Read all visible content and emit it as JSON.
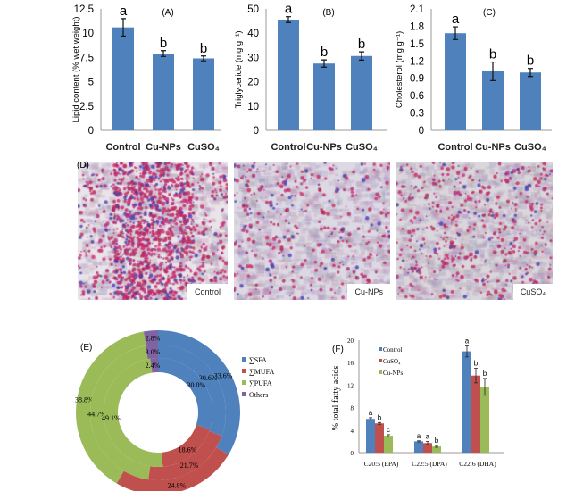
{
  "chart_data": [
    {
      "panel": "(A)",
      "type": "bar",
      "categories": [
        "Control",
        "Cu-NPs",
        "CuSO₄"
      ],
      "values": [
        10.6,
        7.9,
        7.4
      ],
      "errors": [
        0.9,
        0.3,
        0.25
      ],
      "letters": [
        "a",
        "b",
        "b"
      ],
      "ylabel": "Lipid content (% wet weight)",
      "ylim": [
        0,
        12.5
      ],
      "yticks": [
        "0",
        "2.5",
        "5",
        "7.5",
        "10",
        "12.5"
      ],
      "color": "#4f81bd"
    },
    {
      "panel": "(B)",
      "type": "bar",
      "categories": [
        "Control",
        "Cu-NPs",
        "CuSO₄"
      ],
      "values": [
        45.6,
        27.5,
        30.6
      ],
      "errors": [
        1.2,
        1.5,
        1.7
      ],
      "letters": [
        "a",
        "b",
        "b"
      ],
      "ylabel": "Triglyceride (mg g⁻¹)",
      "ylim": [
        0,
        50
      ],
      "yticks": [
        "0",
        "10",
        "20",
        "30",
        "40",
        "50"
      ],
      "color": "#4f81bd"
    },
    {
      "panel": "(C)",
      "type": "bar",
      "categories": [
        "Control",
        "Cu-NPs",
        "CuSO₄"
      ],
      "values": [
        1.68,
        1.02,
        1.0
      ],
      "errors": [
        0.11,
        0.16,
        0.07
      ],
      "letters": [
        "a",
        "b",
        "b"
      ],
      "ylabel": "Cholesterol (mg g⁻¹)",
      "ylim": [
        0,
        2.1
      ],
      "yticks": [
        "0",
        "0.3",
        "0.6",
        "0.9",
        "1.2",
        "1.5",
        "1.8",
        "2.1"
      ],
      "color": "#4f81bd"
    },
    {
      "panel": "(E)",
      "type": "pie",
      "legend": [
        "∑SFA",
        "∑MUFA",
        "∑PUFA",
        "Others"
      ],
      "colors": [
        "#4f81bd",
        "#c0504d",
        "#9bbb59",
        "#8064a2"
      ],
      "rings": [
        [
          33.6,
          24.8,
          38.8,
          2.8
        ],
        [
          30.6,
          21.7,
          44.7,
          3.0
        ],
        [
          30.0,
          18.6,
          49.1,
          2.4
        ]
      ],
      "ring_labels": [
        [
          "33.6%",
          "24.8%",
          "38.8%",
          "2.8%"
        ],
        [
          "30.6%",
          "21.7%",
          "44.7%",
          "3.0%"
        ],
        [
          "30.0%",
          "18.6%",
          "49.1%",
          "2.4%"
        ]
      ]
    },
    {
      "panel": "(F)",
      "type": "bar",
      "categories": [
        "C20:5 (EPA)",
        "C22:5 (DPA)",
        "C22:6 (DHA)"
      ],
      "ylabel": "% total fatty acids",
      "ylim": [
        0,
        20
      ],
      "yticks": [
        "0",
        "4",
        "8",
        "12",
        "16",
        "20"
      ],
      "series": [
        {
          "name": "Control",
          "color": "#4f81bd",
          "values": [
            6.0,
            2.0,
            18.0
          ],
          "errors": [
            0.2,
            0.1,
            1.0
          ],
          "letters": [
            "a",
            "a",
            "a"
          ]
        },
        {
          "name": "CuSO₄",
          "color": "#c0504d",
          "values": [
            5.2,
            1.7,
            13.7
          ],
          "errors": [
            0.15,
            0.3,
            1.3
          ],
          "letters": [
            "b",
            "a",
            "b"
          ]
        },
        {
          "name": "Cu-NPs",
          "color": "#9bbb59",
          "values": [
            3.0,
            1.1,
            11.7
          ],
          "errors": [
            0.2,
            0.15,
            1.5
          ],
          "letters": [
            "c",
            "b",
            "b"
          ]
        }
      ],
      "legend": "top-left"
    }
  ],
  "micrographs": {
    "panel": "(D)",
    "labels": [
      "Control",
      "Cu-NPs",
      "CuSO₄"
    ]
  }
}
